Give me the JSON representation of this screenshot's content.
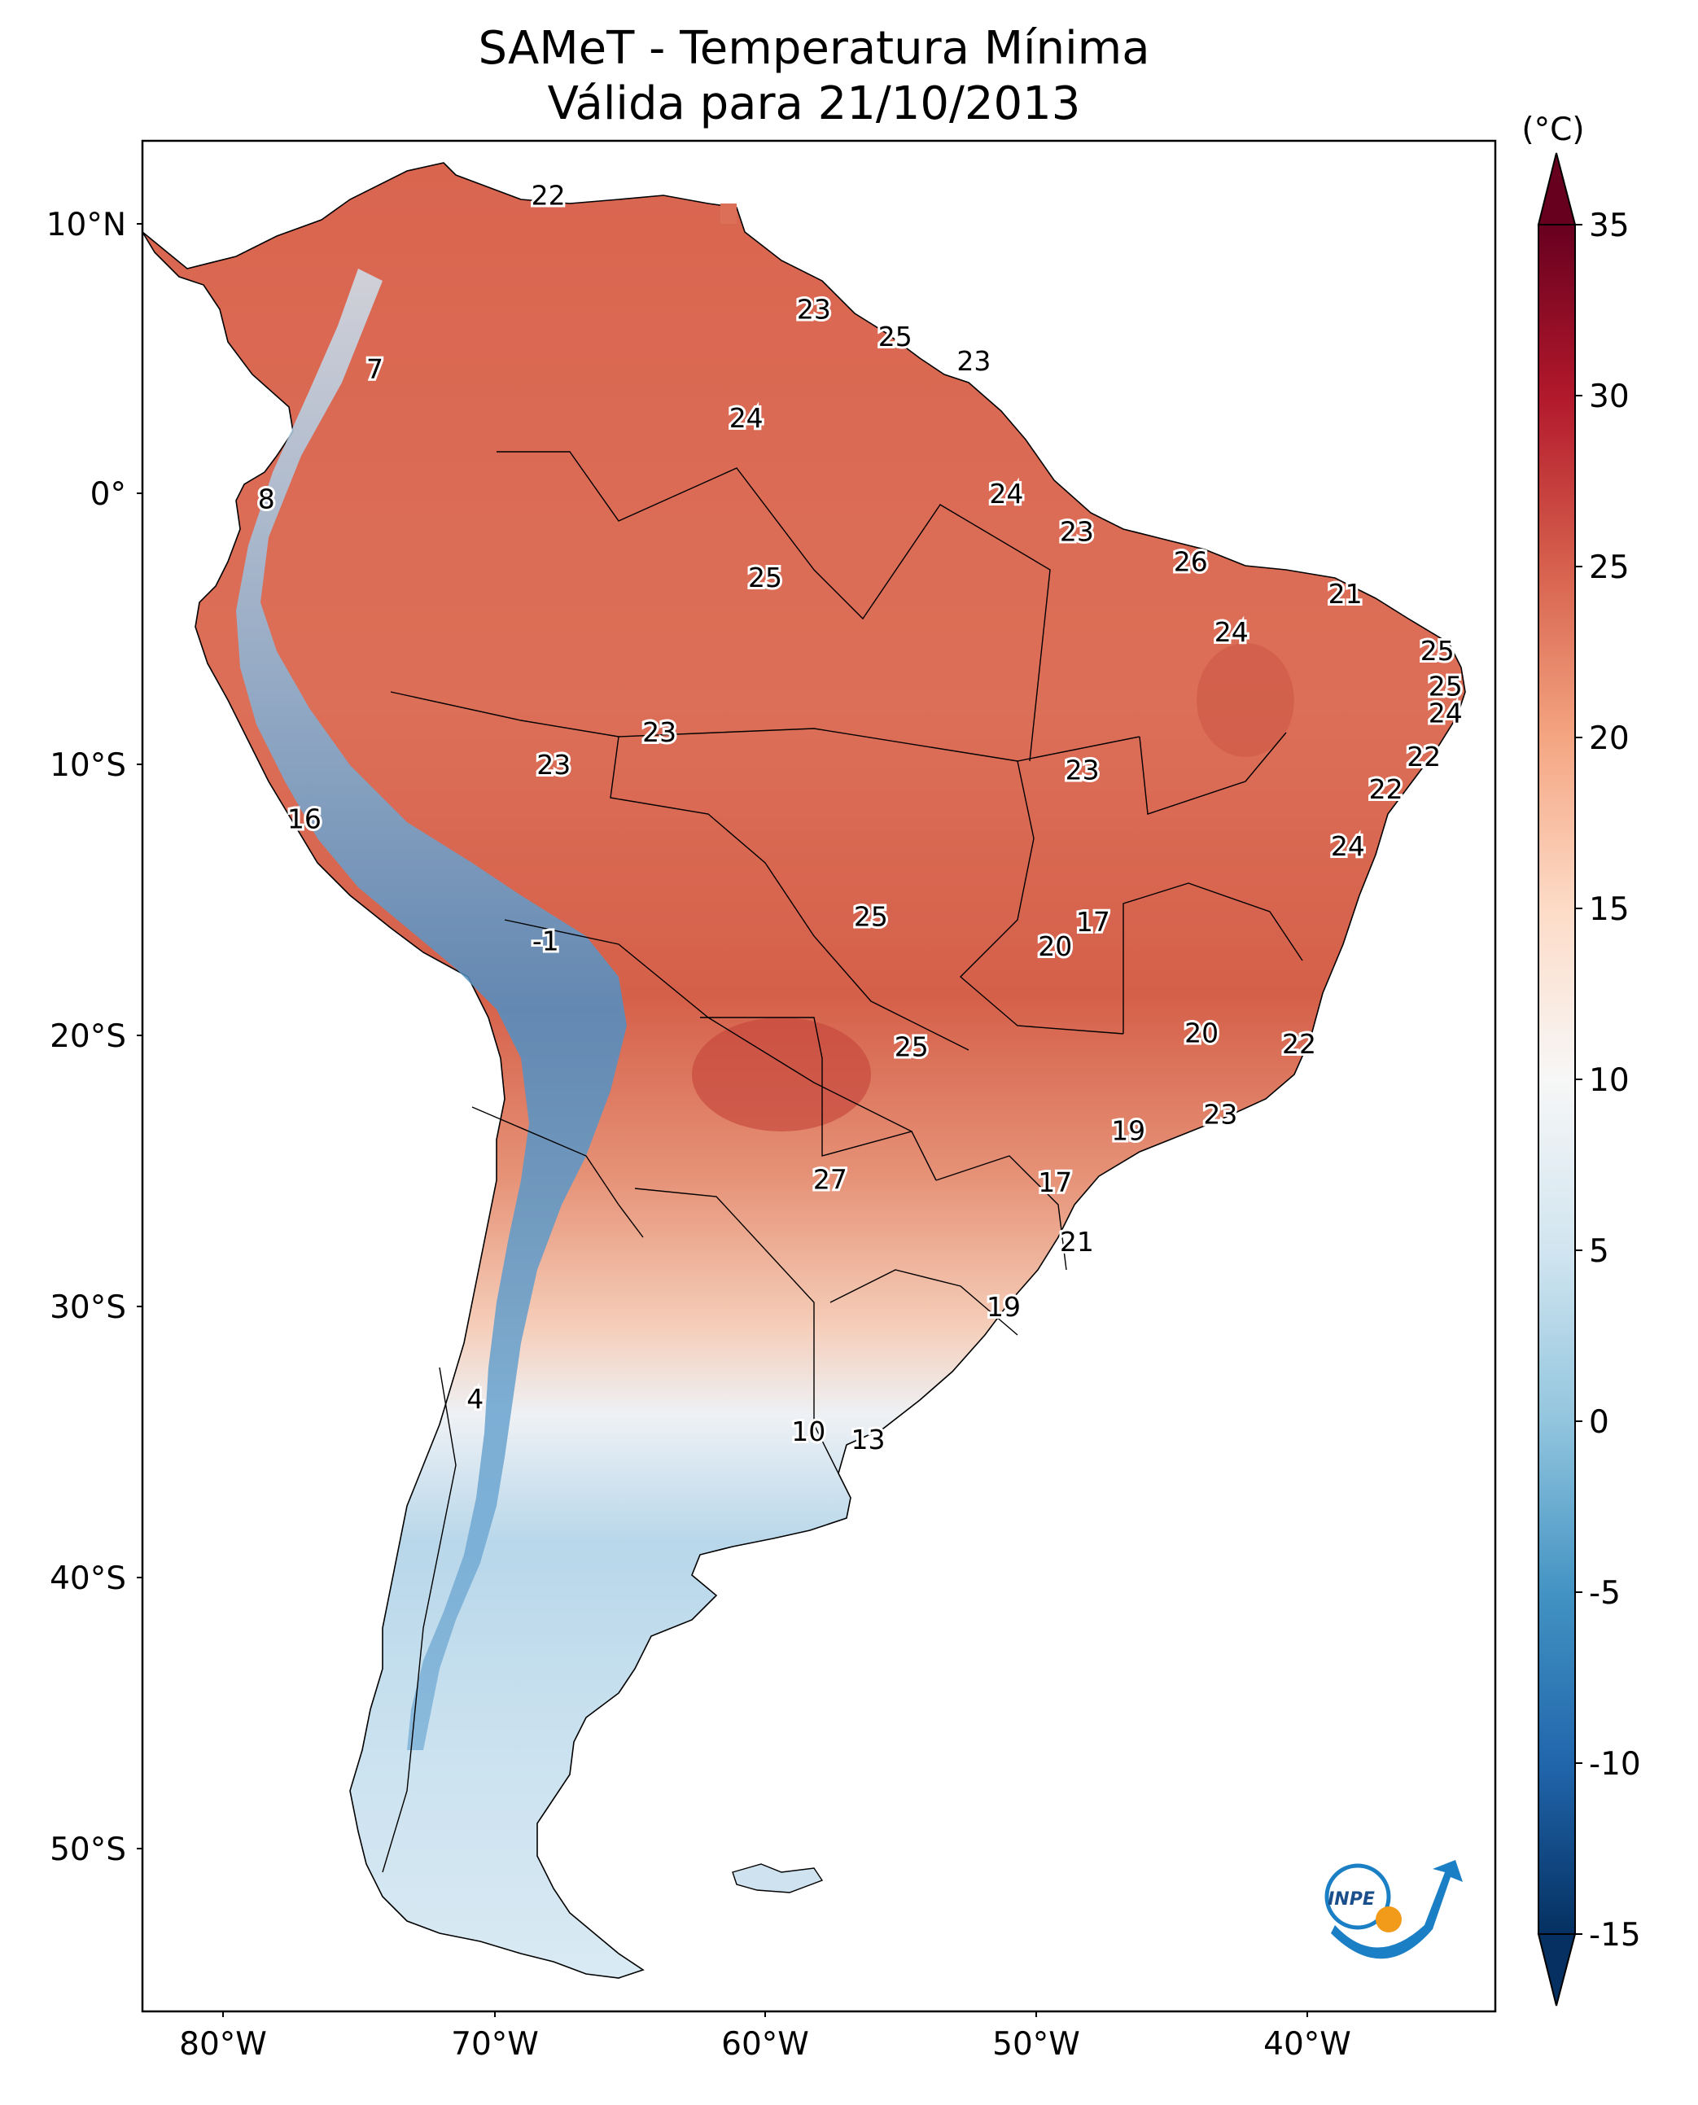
{
  "title": {
    "line1": "SAMeT - Temperatura Mínima",
    "line2": "Válida para 21/10/2013"
  },
  "map": {
    "lat_ticks": [
      "10°N",
      "0°",
      "10°S",
      "20°S",
      "30°S",
      "40°S",
      "50°S"
    ],
    "lon_ticks": [
      "80°W",
      "70°W",
      "60°W",
      "50°W",
      "40°W"
    ],
    "extent": {
      "lon_min": -83,
      "lon_max": -33,
      "lat_min": -56,
      "lat_max": 13
    },
    "region": "South America",
    "logo_text": "INPE",
    "logo_colors": {
      "blue": "#1a7fc4",
      "orange": "#f29a1a"
    }
  },
  "colorbar": {
    "unit": "(°C)",
    "ticks": [
      "35",
      "30",
      "25",
      "20",
      "15",
      "10",
      "5",
      "0",
      "-5",
      "-10",
      "-15"
    ],
    "tick_values": [
      35,
      30,
      25,
      20,
      15,
      10,
      5,
      0,
      -5,
      -10,
      -15
    ],
    "range": [
      -15,
      35
    ],
    "colormap": "RdBu_r",
    "colors": [
      "#053061",
      "#2166ac",
      "#4393c3",
      "#92c5de",
      "#d1e5f0",
      "#f7f7f7",
      "#fddbc7",
      "#f4a582",
      "#d6604d",
      "#b2182b",
      "#67001f"
    ]
  },
  "city_values": [
    {
      "label": "22",
      "lon": -68.0,
      "lat": 11.0
    },
    {
      "label": "7",
      "lon": -74.4,
      "lat": 4.6
    },
    {
      "label": "8",
      "lon": -78.4,
      "lat": -0.2
    },
    {
      "label": "23",
      "lon": -58.2,
      "lat": 6.8
    },
    {
      "label": "25",
      "lon": -55.2,
      "lat": 5.8
    },
    {
      "label": "23",
      "lon": -52.3,
      "lat": 4.9
    },
    {
      "label": "24",
      "lon": -60.7,
      "lat": 2.8
    },
    {
      "label": "24",
      "lon": -51.1,
      "lat": 0.0
    },
    {
      "label": "23",
      "lon": -48.5,
      "lat": -1.4
    },
    {
      "label": "26",
      "lon": -44.3,
      "lat": -2.5
    },
    {
      "label": "21",
      "lon": -38.6,
      "lat": -3.7
    },
    {
      "label": "25",
      "lon": -60.0,
      "lat": -3.1
    },
    {
      "label": "24",
      "lon": -42.8,
      "lat": -5.1
    },
    {
      "label": "25",
      "lon": -35.2,
      "lat": -5.8
    },
    {
      "label": "25",
      "lon": -34.9,
      "lat": -7.1
    },
    {
      "label": "24",
      "lon": -34.9,
      "lat": -8.1
    },
    {
      "label": "22",
      "lon": -35.7,
      "lat": -9.7
    },
    {
      "label": "22",
      "lon": -37.1,
      "lat": -10.9
    },
    {
      "label": "23",
      "lon": -63.9,
      "lat": -8.8
    },
    {
      "label": "23",
      "lon": -67.8,
      "lat": -10.0
    },
    {
      "label": "23",
      "lon": -48.3,
      "lat": -10.2
    },
    {
      "label": "16",
      "lon": -77.0,
      "lat": -12.0
    },
    {
      "label": "24",
      "lon": -38.5,
      "lat": -13.0
    },
    {
      "label": "17",
      "lon": -47.9,
      "lat": -15.8
    },
    {
      "label": "25",
      "lon": -56.1,
      "lat": -15.6
    },
    {
      "label": "20",
      "lon": -49.3,
      "lat": -16.7
    },
    {
      "label": "-1",
      "lon": -68.1,
      "lat": -16.5
    },
    {
      "label": "20",
      "lon": -43.9,
      "lat": -19.9
    },
    {
      "label": "22",
      "lon": -40.3,
      "lat": -20.3
    },
    {
      "label": "25",
      "lon": -54.6,
      "lat": -20.4
    },
    {
      "label": "23",
      "lon": -43.2,
      "lat": -22.9
    },
    {
      "label": "19",
      "lon": -46.6,
      "lat": -23.5
    },
    {
      "label": "27",
      "lon": -57.6,
      "lat": -25.3
    },
    {
      "label": "17",
      "lon": -49.3,
      "lat": -25.4
    },
    {
      "label": "21",
      "lon": -48.5,
      "lat": -27.6
    },
    {
      "label": "19",
      "lon": -51.2,
      "lat": -30.0
    },
    {
      "label": "4",
      "lon": -70.7,
      "lat": -33.4
    },
    {
      "label": "10",
      "lon": -58.4,
      "lat": -34.6
    },
    {
      "label": "13",
      "lon": -56.2,
      "lat": -34.9
    }
  ]
}
